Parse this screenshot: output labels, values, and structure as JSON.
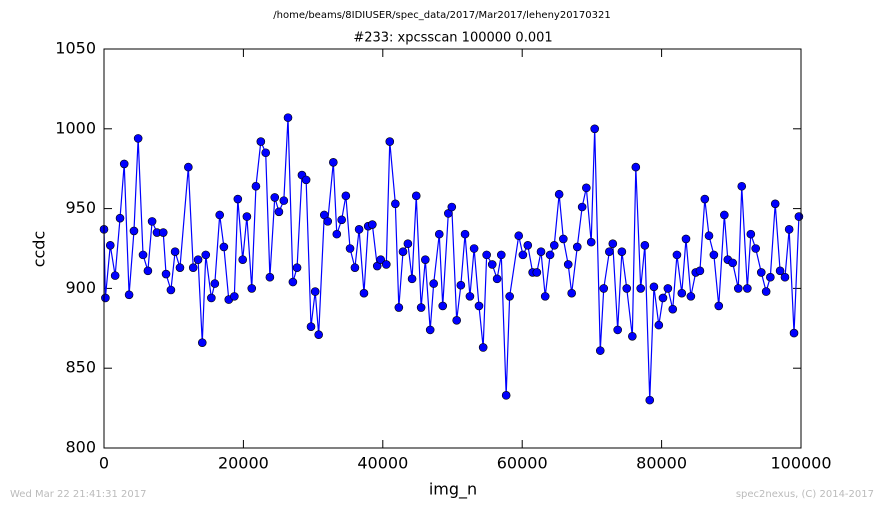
{
  "header": {
    "path": "/home/beams/8IDIUSER/spec_data/2017/Mar2017/leheny20170321"
  },
  "footer": {
    "date": "Wed Mar 22 21:41:31 2017",
    "credit": "spec2nexus, (C) 2014-2017"
  },
  "chart_data": {
    "type": "line",
    "title": "#233: xpcsscan 100000 0.001",
    "x_label": "img_n",
    "y_label": "ccdc",
    "xlim": [
      0,
      100000
    ],
    "xticks": [
      0,
      20000,
      40000,
      60000,
      80000,
      100000
    ],
    "ylim": [
      800,
      1050
    ],
    "yticks": [
      800,
      850,
      900,
      950,
      1000,
      1050
    ],
    "grid": false,
    "series": [
      {
        "name": "ccdc",
        "color": "#0000ff",
        "x": [
          0,
          200,
          900,
          1600,
          2300,
          2900,
          3600,
          4300,
          4900,
          5600,
          6300,
          6900,
          7600,
          8500,
          8900,
          9600,
          10200,
          10900,
          12100,
          12800,
          13500,
          14100,
          14600,
          15400,
          15900,
          16600,
          17200,
          17900,
          18700,
          19200,
          19900,
          20500,
          21200,
          21800,
          22500,
          23200,
          23800,
          24500,
          25100,
          25800,
          26400,
          27100,
          27700,
          28400,
          29000,
          29700,
          30300,
          30800,
          31600,
          32100,
          32900,
          33400,
          34100,
          34700,
          35300,
          36000,
          36600,
          37300,
          37900,
          38500,
          39200,
          39700,
          40500,
          41000,
          41800,
          42300,
          42900,
          43600,
          44200,
          44800,
          45500,
          46100,
          46800,
          47300,
          48100,
          48600,
          49400,
          49900,
          50600,
          51200,
          51800,
          52500,
          53100,
          53800,
          54400,
          54900,
          55700,
          56400,
          57000,
          57700,
          58200,
          59500,
          60100,
          60800,
          61500,
          62100,
          62700,
          63300,
          64000,
          64600,
          65300,
          65900,
          66600,
          67100,
          67900,
          68600,
          69200,
          69900,
          70400,
          71200,
          71700,
          72500,
          73000,
          73700,
          74300,
          75000,
          75800,
          76300,
          77000,
          77600,
          78300,
          78900,
          79600,
          80200,
          80900,
          81600,
          82200,
          82900,
          83500,
          84200,
          84900,
          85500,
          86200,
          86800,
          87500,
          88200,
          89000,
          89500,
          90200,
          91000,
          91500,
          92300,
          92800,
          93500,
          94300,
          95000,
          95600,
          96300,
          97000,
          97700,
          98300,
          99000,
          99700
        ],
        "values": [
          937,
          894,
          927,
          908,
          944,
          978,
          896,
          936,
          994,
          921,
          911,
          942,
          935,
          935,
          909,
          899,
          923,
          913,
          976,
          913,
          918,
          866,
          921,
          894,
          903,
          946,
          926,
          893,
          895,
          956,
          918,
          945,
          900,
          964,
          992,
          985,
          907,
          957,
          948,
          955,
          1007,
          904,
          913,
          971,
          968,
          876,
          898,
          871,
          946,
          942,
          979,
          934,
          943,
          958,
          925,
          913,
          937,
          897,
          939,
          940,
          914,
          918,
          915,
          992,
          953,
          888,
          923,
          928,
          906,
          958,
          888,
          918,
          874,
          903,
          934,
          889,
          947,
          951,
          880,
          902,
          934,
          895,
          925,
          889,
          863,
          921,
          915,
          906,
          921,
          833,
          895,
          933,
          921,
          927,
          910,
          910,
          923,
          895,
          921,
          927,
          959,
          931,
          915,
          897,
          926,
          951,
          963,
          929,
          1000,
          861,
          900,
          923,
          928,
          874,
          923,
          900,
          870,
          976,
          900,
          927,
          830,
          901,
          877,
          894,
          900,
          887,
          921,
          897,
          931,
          895,
          910,
          911,
          956,
          933,
          921,
          889,
          946,
          918,
          916,
          900,
          964,
          900,
          934,
          925,
          910,
          898,
          907,
          953,
          911,
          907,
          937,
          872,
          945
        ]
      }
    ]
  }
}
